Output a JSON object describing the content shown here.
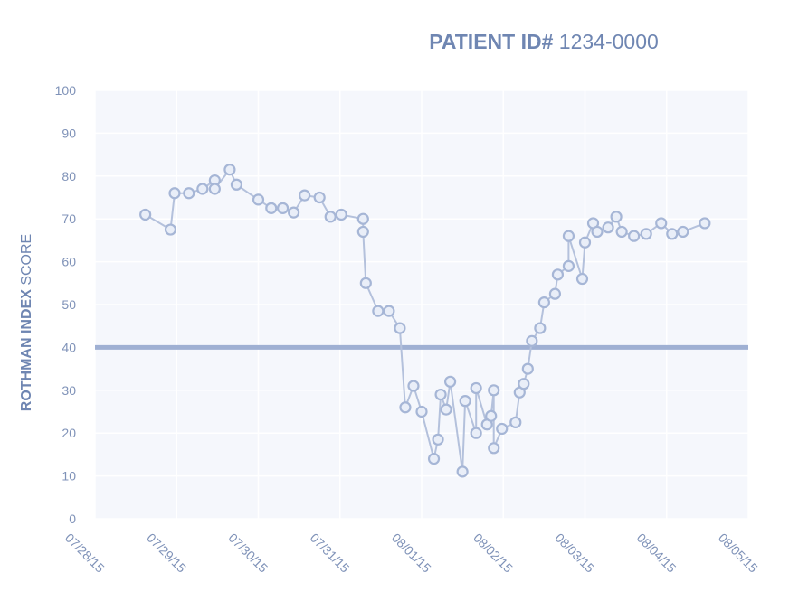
{
  "chart_data": {
    "type": "line",
    "title": {
      "bold": "PATIENT ID#",
      "normal": " 1234-0000"
    },
    "ylabel": {
      "bold": "ROTHMAN INDEX",
      "normal": " SCORE"
    },
    "xlabel": "",
    "ylim": [
      0,
      100
    ],
    "yticks": [
      "0",
      "10",
      "20",
      "30",
      "40",
      "50",
      "60",
      "70",
      "80",
      "90",
      "100"
    ],
    "xticks": [
      "07/28/15",
      "07/29/15",
      "07/30/15",
      "07/31/15",
      "08/01/15",
      "08/02/15",
      "08/03/15",
      "08/04/15",
      "08/05/15"
    ],
    "threshold": 40,
    "grid": true,
    "colors": {
      "line": "#b4c1dc",
      "marker_stroke": "#a6b6d6",
      "marker_fill": "#e9eef8",
      "threshold": "#9fb0d3",
      "grid": "#ffffff",
      "plot_bg": "#f5f7fc"
    },
    "series": [
      {
        "points": [
          [
            "07/28/15 14:48",
            71
          ],
          [
            "07/28/15 22:12",
            67.5
          ],
          [
            "07/28/15 23:24",
            76
          ],
          [
            "07/29/15 03:36",
            76
          ],
          [
            "07/29/15 07:36",
            77
          ],
          [
            "07/29/15 11:12",
            79
          ],
          [
            "07/29/15 11:12",
            77
          ],
          [
            "07/29/15 15:36",
            81.5
          ],
          [
            "07/29/15 17:36",
            78
          ],
          [
            "07/30/15 00:00",
            74.5
          ],
          [
            "07/30/15 03:48",
            72.5
          ],
          [
            "07/30/15 07:12",
            72.5
          ],
          [
            "07/30/15 10:24",
            71.5
          ],
          [
            "07/30/15 13:36",
            75.5
          ],
          [
            "07/30/15 18:00",
            75
          ],
          [
            "07/30/15 21:12",
            70.5
          ],
          [
            "07/31/15 00:24",
            71
          ],
          [
            "07/31/15 06:48",
            70
          ],
          [
            "07/31/15 06:48",
            67
          ],
          [
            "07/31/15 07:36",
            55
          ],
          [
            "07/31/15 11:12",
            48.5
          ],
          [
            "07/31/15 14:24",
            48.5
          ],
          [
            "07/31/15 17:36",
            44.5
          ],
          [
            "07/31/15 19:12",
            26
          ],
          [
            "07/31/15 21:36",
            31
          ],
          [
            "08/01/15 00:00",
            25
          ],
          [
            "08/01/15 03:36",
            14
          ],
          [
            "08/01/15 04:48",
            18.5
          ],
          [
            "08/01/15 05:36",
            29
          ],
          [
            "08/01/15 07:12",
            25.5
          ],
          [
            "08/01/15 08:24",
            32
          ],
          [
            "08/01/15 12:00",
            11
          ],
          [
            "08/01/15 12:48",
            27.5
          ],
          [
            "08/01/15 16:00",
            20
          ],
          [
            "08/01/15 16:00",
            30.5
          ],
          [
            "08/01/15 19:12",
            22
          ],
          [
            "08/01/15 20:24",
            24
          ],
          [
            "08/01/15 21:12",
            30
          ],
          [
            "08/01/15 21:12",
            16.5
          ],
          [
            "08/01/15 23:36",
            21
          ],
          [
            "08/02/15 03:36",
            22.5
          ],
          [
            "08/02/15 04:48",
            29.5
          ],
          [
            "08/02/15 06:00",
            31.5
          ],
          [
            "08/02/15 07:12",
            35
          ],
          [
            "08/02/15 08:24",
            41.5
          ],
          [
            "08/02/15 10:48",
            44.5
          ],
          [
            "08/02/15 12:00",
            50.5
          ],
          [
            "08/02/15 15:12",
            52.5
          ],
          [
            "08/02/15 16:00",
            57
          ],
          [
            "08/02/15 19:12",
            59
          ],
          [
            "08/02/15 19:12",
            66
          ],
          [
            "08/02/15 23:12",
            56
          ],
          [
            "08/03/15 00:00",
            64.5
          ],
          [
            "08/03/15 02:24",
            69
          ],
          [
            "08/03/15 03:36",
            67
          ],
          [
            "08/03/15 06:48",
            68
          ],
          [
            "08/03/15 09:12",
            70.5
          ],
          [
            "08/03/15 10:48",
            67
          ],
          [
            "08/03/15 14:24",
            66
          ],
          [
            "08/03/15 18:00",
            66.5
          ],
          [
            "08/03/15 22:24",
            69
          ],
          [
            "08/04/15 01:36",
            66.5
          ],
          [
            "08/04/15 04:48",
            67
          ],
          [
            "08/04/15 11:12",
            69
          ]
        ]
      }
    ]
  }
}
